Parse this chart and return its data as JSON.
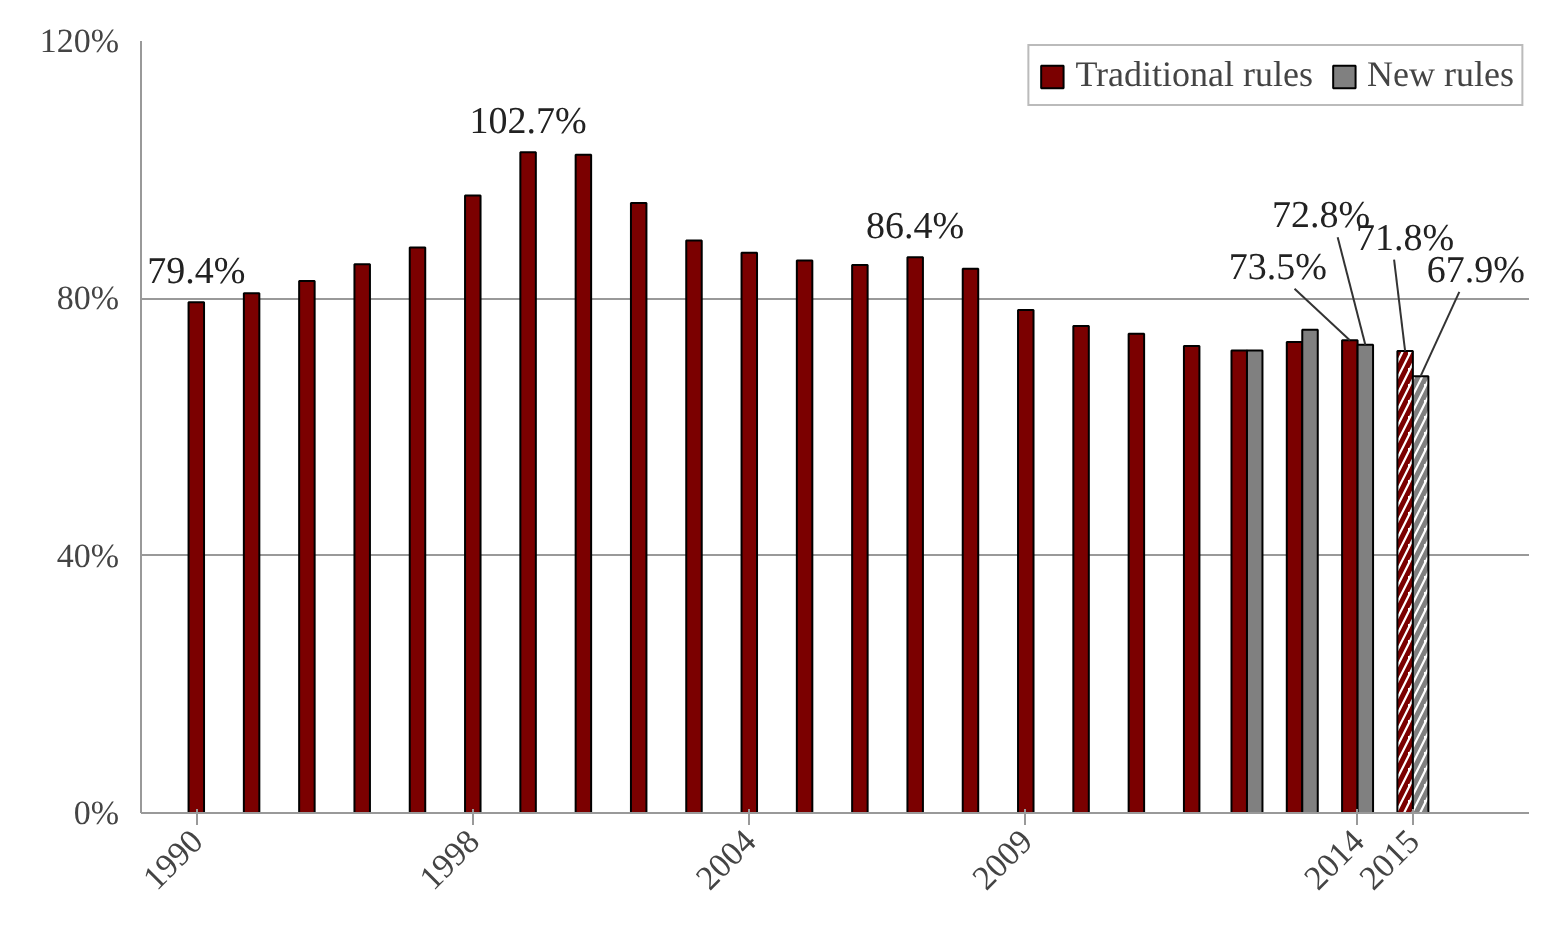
{
  "chart_data": {
    "type": "bar",
    "categories": [
      "1990",
      null,
      null,
      null,
      null,
      "1998",
      null,
      null,
      null,
      null,
      "2004",
      null,
      null,
      null,
      null,
      "2009",
      null,
      null,
      null,
      null,
      null,
      "2014",
      "2015"
    ],
    "series": [
      {
        "name": "Traditional rules",
        "color": "#7b0000",
        "colors": [
          "#7b0000",
          "#7b0000",
          "#7b0000",
          "#7b0000",
          "#7b0000",
          "#7b0000",
          "#7b0000",
          "#7b0000",
          "#7b0000",
          "#7b0000",
          "#7b0000",
          "#7b0000",
          "#7b0000",
          "#7b0000",
          "#7b0000",
          "#7b0000",
          "#7b0000",
          "#7b0000",
          "#7b0000",
          "#7b0000",
          "#7b0000",
          "#7b0000",
          "#ffffff"
        ],
        "values": [
          79.4,
          80.8,
          82.7,
          85.3,
          87.9,
          96.0,
          102.7,
          102.3,
          94.8,
          89.0,
          87.1,
          85.9,
          85.2,
          86.4,
          84.6,
          78.2,
          75.7,
          74.5,
          72.6,
          71.9,
          73.2,
          73.5,
          71.8
        ],
        "value_labels": [
          "79.4%",
          null,
          null,
          null,
          null,
          null,
          "102.7%",
          null,
          null,
          null,
          null,
          null,
          null,
          "86.4%",
          null,
          null,
          null,
          null,
          null,
          null,
          null,
          "73.5%",
          "71.8%"
        ]
      },
      {
        "name": "New rules",
        "color": "#808080",
        "colors": [
          "#808080",
          "#808080",
          "#808080",
          "#808080",
          "#808080",
          "#808080",
          "#808080",
          "#808080",
          "#808080",
          "#808080",
          "#808080",
          "#808080",
          "#808080",
          "#808080",
          "#808080",
          "#808080",
          "#808080",
          "#808080",
          "#808080",
          "#808080",
          "#808080",
          "#808080",
          "#ffffff"
        ],
        "values": [
          null,
          null,
          null,
          null,
          null,
          null,
          null,
          null,
          null,
          null,
          null,
          null,
          null,
          null,
          null,
          null,
          null,
          null,
          null,
          71.9,
          75.1,
          72.8,
          67.9
        ],
        "value_labels": [
          null,
          null,
          null,
          null,
          null,
          null,
          null,
          null,
          null,
          null,
          null,
          null,
          null,
          null,
          null,
          null,
          null,
          null,
          null,
          null,
          null,
          "72.8%",
          "67.9%"
        ]
      }
    ],
    "ylim": [
      0,
      120
    ],
    "yticks": [
      {
        "value": 0,
        "label": "0%"
      },
      {
        "value": 40,
        "label": "40%"
      },
      {
        "value": 80,
        "label": "80%"
      },
      {
        "value": 120,
        "label": "120%"
      }
    ],
    "grid": "y",
    "legend": "top right"
  }
}
